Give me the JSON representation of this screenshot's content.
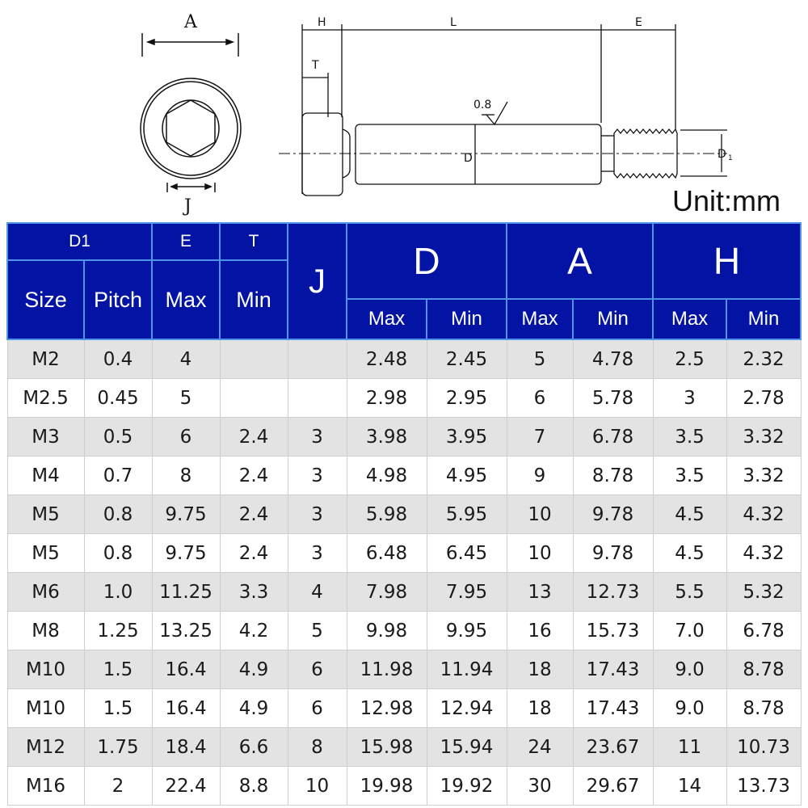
{
  "drawing": {
    "labels": {
      "A": "A",
      "J": "J",
      "H": "H",
      "T": "T",
      "L": "L",
      "E": "E",
      "D": "D",
      "D1": "D",
      "D1_sub": "1",
      "roughness": "0.8"
    },
    "unit": "Unit:mm"
  },
  "table": {
    "header_top": {
      "D1": "D1",
      "E": "E",
      "T": "T",
      "J": "J",
      "D": "D",
      "A": "A",
      "H": "H"
    },
    "header_sub": {
      "size": "Size",
      "pitch": "Pitch",
      "e_max": "Max",
      "t_min": "Min",
      "d_max": "Max",
      "d_min": "Min",
      "a_max": "Max",
      "a_min": "Min",
      "h_max": "Max",
      "h_min": "Min"
    },
    "rows": [
      [
        "M2",
        "0.4",
        "4",
        "",
        "",
        "2.48",
        "2.45",
        "5",
        "4.78",
        "2.5",
        "2.32"
      ],
      [
        "M2.5",
        "0.45",
        "5",
        "",
        "",
        "2.98",
        "2.95",
        "6",
        "5.78",
        "3",
        "2.78"
      ],
      [
        "M3",
        "0.5",
        "6",
        "2.4",
        "3",
        "3.98",
        "3.95",
        "7",
        "6.78",
        "3.5",
        "3.32"
      ],
      [
        "M4",
        "0.7",
        "8",
        "2.4",
        "3",
        "4.98",
        "4.95",
        "9",
        "8.78",
        "3.5",
        "3.32"
      ],
      [
        "M5",
        "0.8",
        "9.75",
        "2.4",
        "3",
        "5.98",
        "5.95",
        "10",
        "9.78",
        "4.5",
        "4.32"
      ],
      [
        "M5",
        "0.8",
        "9.75",
        "2.4",
        "3",
        "6.48",
        "6.45",
        "10",
        "9.78",
        "4.5",
        "4.32"
      ],
      [
        "M6",
        "1.0",
        "11.25",
        "3.3",
        "4",
        "7.98",
        "7.95",
        "13",
        "12.73",
        "5.5",
        "5.32"
      ],
      [
        "M8",
        "1.25",
        "13.25",
        "4.2",
        "5",
        "9.98",
        "9.95",
        "16",
        "15.73",
        "7.0",
        "6.78"
      ],
      [
        "M10",
        "1.5",
        "16.4",
        "4.9",
        "6",
        "11.98",
        "11.94",
        "18",
        "17.43",
        "9.0",
        "8.78"
      ],
      [
        "M10",
        "1.5",
        "16.4",
        "4.9",
        "6",
        "12.98",
        "12.94",
        "18",
        "17.43",
        "9.0",
        "8.78"
      ],
      [
        "M12",
        "1.75",
        "18.4",
        "6.6",
        "8",
        "15.98",
        "15.94",
        "24",
        "23.67",
        "11",
        "10.73"
      ],
      [
        "M16",
        "2",
        "22.4",
        "8.8",
        "10",
        "19.98",
        "19.92",
        "30",
        "29.67",
        "14",
        "13.73"
      ]
    ]
  },
  "colors": {
    "header_bg": "#0313a3",
    "header_border": "#4f94e8",
    "row_alt": "#e3e3e3"
  }
}
